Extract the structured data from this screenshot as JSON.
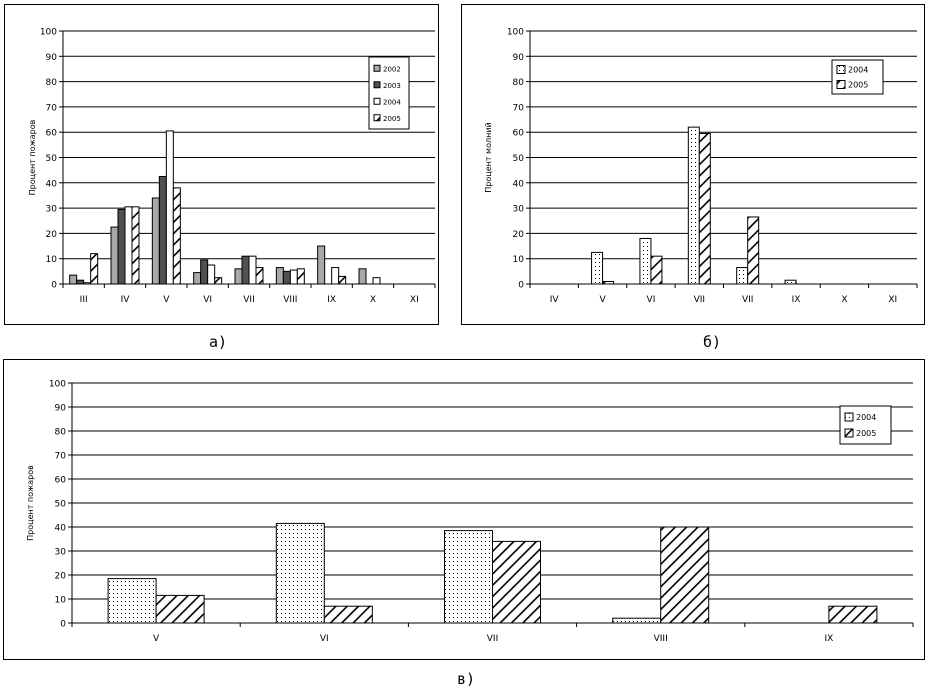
{
  "patterns": {
    "grey": "#a9a9a9",
    "dark": "#505050",
    "white": "#ffffff"
  },
  "captions": {
    "a": "а)",
    "b": "б)",
    "c": "в)"
  },
  "chart_data": [
    {
      "type": "bar",
      "title": "",
      "ylabel": "Процент пожаров",
      "xlabel": "",
      "ylim": [
        0,
        100
      ],
      "yticks": [
        0,
        10,
        20,
        30,
        40,
        50,
        60,
        70,
        80,
        90,
        100
      ],
      "grid": true,
      "legend_position": "right",
      "categories": [
        "III",
        "IV",
        "V",
        "VI",
        "VII",
        "VIII",
        "IX",
        "X",
        "XI"
      ],
      "series": [
        {
          "name": "2002",
          "fill": "grey",
          "values": [
            3.5,
            22.5,
            34,
            4.5,
            6,
            6.5,
            15,
            6,
            0
          ]
        },
        {
          "name": "2003",
          "fill": "dark",
          "values": [
            1.5,
            29.5,
            42.5,
            9.5,
            11,
            5,
            0,
            0,
            0
          ]
        },
        {
          "name": "2004",
          "fill": "white",
          "values": [
            0.5,
            30.5,
            60.5,
            7.5,
            11,
            5.5,
            6.5,
            2.5,
            0
          ]
        },
        {
          "name": "2005",
          "fill": "hatch",
          "values": [
            12,
            30.5,
            38,
            2.5,
            6.5,
            6,
            3,
            0,
            0
          ]
        }
      ]
    },
    {
      "type": "bar",
      "title": "",
      "ylabel": "Процент молний",
      "xlabel": "",
      "ylim": [
        0,
        100
      ],
      "yticks": [
        0,
        10,
        20,
        30,
        40,
        50,
        60,
        70,
        80,
        90,
        100
      ],
      "grid": true,
      "legend_position": "top-right",
      "categories": [
        "IV",
        "V",
        "VI",
        "VII",
        "VII",
        "IX",
        "X",
        "XI"
      ],
      "series": [
        {
          "name": "2004",
          "fill": "dots",
          "values": [
            0,
            12.5,
            18,
            62,
            6.5,
            1.5,
            0,
            0
          ]
        },
        {
          "name": "2005",
          "fill": "hatch",
          "values": [
            0,
            1,
            11,
            59.5,
            26.5,
            0,
            0,
            0
          ]
        }
      ]
    },
    {
      "type": "bar",
      "title": "",
      "ylabel": "Процент пожаров",
      "xlabel": "",
      "ylim": [
        0,
        100
      ],
      "yticks": [
        0,
        10,
        20,
        30,
        40,
        50,
        60,
        70,
        80,
        90,
        100
      ],
      "grid": true,
      "legend_position": "top-right",
      "categories": [
        "V",
        "VI",
        "VII",
        "VIII",
        "IX"
      ],
      "series": [
        {
          "name": "2004",
          "fill": "dots",
          "values": [
            18.5,
            41.5,
            38.5,
            2,
            0
          ]
        },
        {
          "name": "2005",
          "fill": "hatch",
          "values": [
            11.5,
            7,
            34,
            40,
            7
          ]
        }
      ]
    }
  ]
}
